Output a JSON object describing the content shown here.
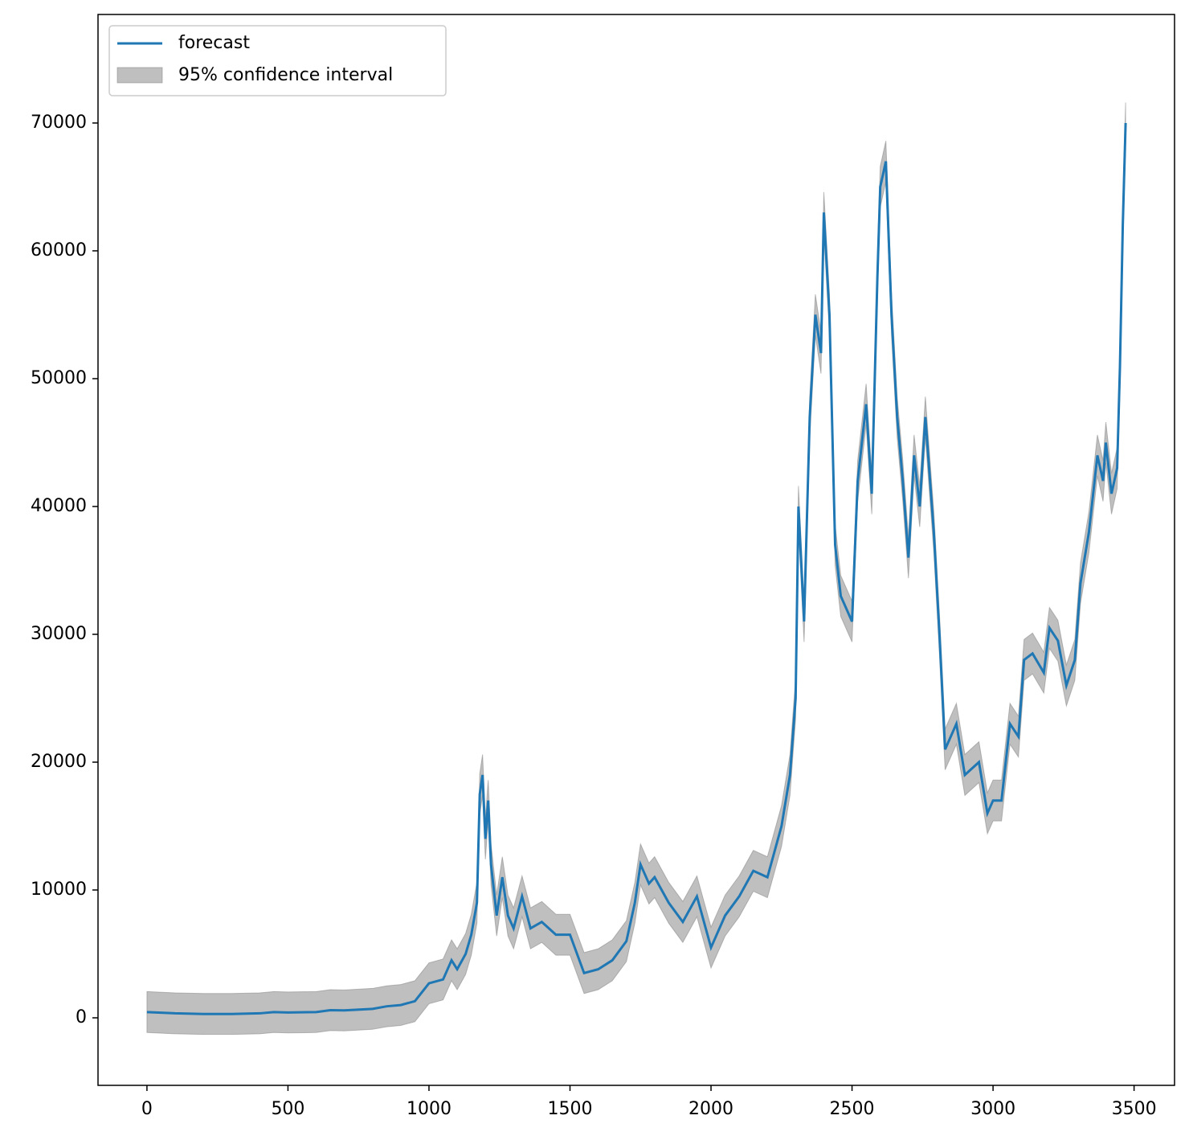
{
  "chart_data": {
    "type": "line",
    "x": [
      0,
      100,
      200,
      300,
      400,
      450,
      500,
      600,
      650,
      700,
      800,
      850,
      900,
      950,
      1000,
      1050,
      1080,
      1100,
      1130,
      1150,
      1170,
      1180,
      1190,
      1200,
      1210,
      1220,
      1240,
      1260,
      1280,
      1300,
      1330,
      1360,
      1400,
      1450,
      1500,
      1550,
      1600,
      1650,
      1700,
      1730,
      1750,
      1780,
      1800,
      1850,
      1900,
      1950,
      2000,
      2050,
      2100,
      2150,
      2200,
      2250,
      2280,
      2300,
      2310,
      2330,
      2350,
      2370,
      2390,
      2400,
      2420,
      2440,
      2460,
      2500,
      2520,
      2550,
      2570,
      2590,
      2600,
      2620,
      2640,
      2660,
      2680,
      2700,
      2720,
      2740,
      2760,
      2790,
      2810,
      2830,
      2870,
      2900,
      2950,
      2980,
      3000,
      3030,
      3060,
      3090,
      3110,
      3140,
      3180,
      3200,
      3230,
      3260,
      3290,
      3310,
      3340,
      3370,
      3390,
      3400,
      3420,
      3440,
      3450,
      3460,
      3470
    ],
    "series": [
      {
        "name": "forecast",
        "color": "#1f77b4",
        "values": [
          450,
          350,
          300,
          300,
          350,
          450,
          420,
          450,
          600,
          580,
          700,
          900,
          1000,
          1300,
          2700,
          3000,
          4500,
          3800,
          5000,
          6500,
          9000,
          17500,
          19000,
          14000,
          17000,
          12000,
          8000,
          11000,
          8000,
          7000,
          9500,
          7000,
          7500,
          6500,
          6500,
          3500,
          3800,
          4500,
          6000,
          9000,
          12000,
          10500,
          11000,
          9000,
          7500,
          9500,
          5500,
          8000,
          9500,
          11500,
          11000,
          15000,
          19000,
          25000,
          40000,
          31000,
          47000,
          55000,
          52000,
          63000,
          55000,
          37000,
          33000,
          31000,
          42000,
          48000,
          41000,
          58000,
          65000,
          67000,
          55000,
          47000,
          42000,
          36000,
          44000,
          40000,
          47000,
          38000,
          30000,
          21000,
          23000,
          19000,
          20000,
          16000,
          17000,
          17000,
          23000,
          22000,
          28000,
          28500,
          27000,
          30500,
          29500,
          26000,
          28000,
          34000,
          38000,
          44000,
          42000,
          45000,
          41000,
          43000,
          51000,
          62000,
          70000
        ]
      }
    ],
    "band": {
      "name": "95% confidence interval",
      "color": "#808080",
      "lower": [
        -1150,
        -1250,
        -1300,
        -1300,
        -1250,
        -1150,
        -1180,
        -1150,
        -1000,
        -1020,
        -900,
        -700,
        -600,
        -300,
        1100,
        1400,
        2900,
        2200,
        3400,
        4900,
        7400,
        15900,
        17400,
        12400,
        15400,
        10400,
        6400,
        9400,
        6400,
        5400,
        7900,
        5400,
        5900,
        4900,
        4900,
        1900,
        2200,
        2900,
        4400,
        7400,
        10400,
        8900,
        9400,
        7400,
        5900,
        7900,
        3900,
        6400,
        7900,
        9900,
        9400,
        13400,
        17400,
        23400,
        38400,
        29400,
        45400,
        53400,
        50400,
        61400,
        53400,
        35400,
        31400,
        29400,
        40400,
        46400,
        39400,
        56400,
        63400,
        65400,
        53400,
        45400,
        40400,
        34400,
        42400,
        38400,
        45400,
        36400,
        28400,
        19400,
        21400,
        17400,
        18400,
        14400,
        15400,
        15400,
        21400,
        20400,
        26400,
        26900,
        25400,
        28900,
        27900,
        24400,
        26400,
        32400,
        36400,
        42400,
        40400,
        43400,
        39400,
        41400,
        49400,
        60400,
        68400
      ],
      "upper": [
        2050,
        1950,
        1900,
        1900,
        1950,
        2050,
        2020,
        2050,
        2200,
        2180,
        2300,
        2500,
        2600,
        2900,
        4300,
        4600,
        6100,
        5400,
        6600,
        8100,
        10600,
        19100,
        20600,
        15600,
        18600,
        13600,
        9600,
        12600,
        9600,
        8600,
        11100,
        8600,
        9100,
        8100,
        8100,
        5100,
        5400,
        6100,
        7600,
        10600,
        13600,
        12100,
        12600,
        10600,
        9100,
        11100,
        7100,
        9600,
        11100,
        13100,
        12600,
        16600,
        20600,
        26600,
        41600,
        32600,
        48600,
        56600,
        53600,
        64600,
        56600,
        38600,
        34600,
        32600,
        43600,
        49600,
        42600,
        59600,
        66600,
        68600,
        56600,
        48600,
        43600,
        37600,
        45600,
        41600,
        48600,
        39600,
        31600,
        22600,
        24600,
        20600,
        21600,
        17600,
        18600,
        18600,
        24600,
        23600,
        29600,
        30100,
        28600,
        32100,
        31100,
        27600,
        29600,
        35600,
        39600,
        45600,
        43600,
        46600,
        42600,
        44600,
        52600,
        63600,
        71600
      ]
    },
    "xlim": [
      -173.5,
      3643.5
    ],
    "xticks": [
      0,
      500,
      1000,
      1500,
      2000,
      2500,
      3000,
      3500
    ],
    "ylim": [
      -5283,
      78490
    ],
    "yticks": [
      0,
      10000,
      20000,
      30000,
      40000,
      50000,
      60000,
      70000
    ],
    "legend": "upper left",
    "grid": false
  }
}
